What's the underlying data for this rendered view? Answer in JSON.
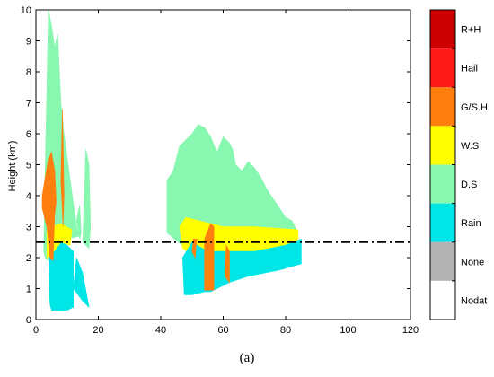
{
  "caption": "(a)",
  "chart_data": {
    "type": "heatmap",
    "title": "",
    "xlabel": "",
    "ylabel": "Height (km)",
    "xlim": [
      0,
      120
    ],
    "ylim": [
      0,
      10
    ],
    "xticks": [
      0,
      20,
      40,
      60,
      80,
      100,
      120
    ],
    "yticks": [
      0,
      1,
      2,
      3,
      4,
      5,
      6,
      7,
      8,
      9,
      10
    ],
    "grid": false,
    "reference_line": {
      "y": 2.5,
      "style": "dash-dot",
      "color": "#000000"
    },
    "colorbar": {
      "placement": "right",
      "categories": [
        {
          "label": "R+H",
          "color": "#cc0000"
        },
        {
          "label": "Hail",
          "color": "#ff1a1a"
        },
        {
          "label": "G/S.H",
          "color": "#ff7f0e"
        },
        {
          "label": "W.S",
          "color": "#ffff00"
        },
        {
          "label": "D.S",
          "color": "#88f7b0"
        },
        {
          "label": "Rain",
          "color": "#00e6e6"
        },
        {
          "label": "None",
          "color": "#b3b3b3"
        },
        {
          "label": "Nodat",
          "color": "#ffffff"
        }
      ]
    },
    "regions": [
      {
        "class": "D.S",
        "points": [
          [
            2.5,
            2.2
          ],
          [
            3,
            5
          ],
          [
            3.5,
            7.5
          ],
          [
            4,
            10
          ],
          [
            5,
            9.5
          ],
          [
            6,
            8.8
          ],
          [
            7,
            9.2
          ],
          [
            8,
            7
          ],
          [
            9,
            6
          ],
          [
            11,
            4.5
          ],
          [
            13,
            3
          ],
          [
            14,
            2.7
          ],
          [
            10,
            2.6
          ],
          [
            8,
            2
          ],
          [
            5,
            1.8
          ],
          [
            3,
            2
          ]
        ]
      },
      {
        "class": "D.S",
        "points": [
          [
            15,
            2.5
          ],
          [
            16,
            5.5
          ],
          [
            17,
            5
          ],
          [
            17.5,
            3
          ],
          [
            17,
            2.3
          ]
        ]
      },
      {
        "class": "D.S",
        "points": [
          [
            13,
            3.2
          ],
          [
            14,
            3.7
          ],
          [
            14.5,
            2.8
          ],
          [
            14,
            2.6
          ]
        ]
      },
      {
        "class": "Rain",
        "points": [
          [
            4,
            2.2
          ],
          [
            4.5,
            0.5
          ],
          [
            5,
            0.3
          ],
          [
            10,
            0.3
          ],
          [
            12,
            0.4
          ],
          [
            12,
            2.2
          ],
          [
            9,
            2.5
          ],
          [
            7,
            2.5
          ]
        ]
      },
      {
        "class": "Rain",
        "points": [
          [
            12,
            1
          ],
          [
            15,
            0.6
          ],
          [
            17,
            0.4
          ],
          [
            15,
            1.5
          ],
          [
            13,
            2
          ]
        ]
      },
      {
        "class": "W.S",
        "points": [
          [
            3.5,
            2
          ],
          [
            5,
            2.1
          ],
          [
            8,
            2.5
          ],
          [
            11,
            2.4
          ],
          [
            11.5,
            2.9
          ],
          [
            8,
            3.1
          ],
          [
            5,
            3
          ],
          [
            3.5,
            2.9
          ]
        ]
      },
      {
        "class": "G/S.H",
        "points": [
          [
            2,
            4
          ],
          [
            3,
            4.6
          ],
          [
            4,
            5.2
          ],
          [
            5,
            5.4
          ],
          [
            6,
            4.8
          ],
          [
            6.5,
            3.8
          ],
          [
            6,
            3.4
          ],
          [
            5.5,
            1.9
          ],
          [
            4.5,
            2
          ],
          [
            3.5,
            3
          ],
          [
            2,
            3.6
          ]
        ]
      },
      {
        "class": "G/S.H",
        "points": [
          [
            8,
            4.5
          ],
          [
            8.5,
            6.8
          ],
          [
            9,
            4
          ],
          [
            8.7,
            3
          ]
        ]
      },
      {
        "class": "D.S",
        "points": [
          [
            42,
            2.8
          ],
          [
            42,
            4.5
          ],
          [
            44,
            4.8
          ],
          [
            46,
            5.6
          ],
          [
            48,
            5.8
          ],
          [
            50,
            6
          ],
          [
            52,
            6.3
          ],
          [
            54,
            6.2
          ],
          [
            56,
            5.9
          ],
          [
            58,
            5.4
          ],
          [
            60,
            5.9
          ],
          [
            62,
            5.7
          ],
          [
            63,
            5.5
          ],
          [
            64,
            5
          ],
          [
            66,
            4.8
          ],
          [
            68,
            5.1
          ],
          [
            70,
            4.9
          ],
          [
            72,
            4.6
          ],
          [
            74,
            4.2
          ],
          [
            76,
            3.9
          ],
          [
            78,
            3.6
          ],
          [
            80,
            3.3
          ],
          [
            82,
            3.2
          ],
          [
            84,
            2.8
          ],
          [
            82,
            2.5
          ],
          [
            60,
            2.6
          ],
          [
            48,
            2.3
          ]
        ]
      },
      {
        "class": "W.S",
        "points": [
          [
            47,
            2.3
          ],
          [
            46,
            3
          ],
          [
            48,
            3.3
          ],
          [
            60,
            3
          ],
          [
            70,
            3
          ],
          [
            84,
            2.9
          ],
          [
            84,
            2.3
          ],
          [
            78,
            2.1
          ],
          [
            60,
            2
          ],
          [
            50,
            2.1
          ]
        ]
      },
      {
        "class": "Rain",
        "points": [
          [
            47,
            2
          ],
          [
            47.5,
            0.8
          ],
          [
            50,
            0.8
          ],
          [
            54,
            0.9
          ],
          [
            56,
            0.9
          ],
          [
            62,
            1.2
          ],
          [
            68,
            1.4
          ],
          [
            78,
            1.6
          ],
          [
            85,
            1.8
          ],
          [
            85,
            2.6
          ],
          [
            80,
            2.4
          ],
          [
            70,
            2.2
          ],
          [
            60,
            2.2
          ],
          [
            55,
            2.2
          ],
          [
            50,
            2.5
          ]
        ]
      },
      {
        "class": "G/S.H",
        "points": [
          [
            54,
            0.95
          ],
          [
            54,
            2.6
          ],
          [
            56,
            3.1
          ],
          [
            57,
            3
          ],
          [
            57,
            0.95
          ]
        ]
      },
      {
        "class": "G/S.H",
        "points": [
          [
            60.5,
            1.4
          ],
          [
            61,
            2.4
          ],
          [
            62,
            2.2
          ],
          [
            62,
            1.2
          ]
        ]
      },
      {
        "class": "G/S.H",
        "points": [
          [
            50,
            2.2
          ],
          [
            50.5,
            2.6
          ],
          [
            51.5,
            2.6
          ],
          [
            51,
            2
          ]
        ]
      }
    ]
  }
}
